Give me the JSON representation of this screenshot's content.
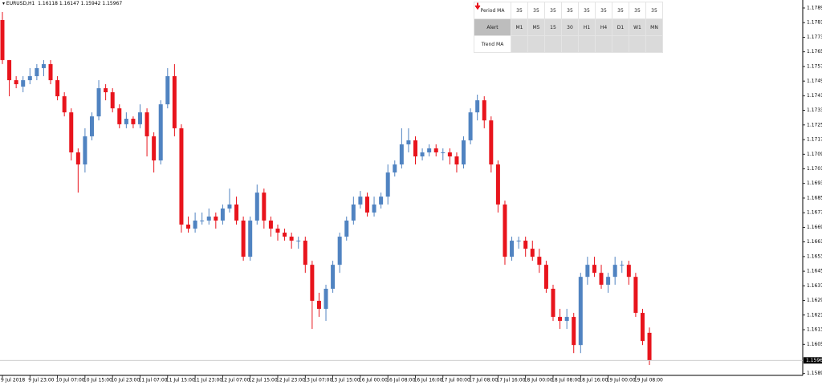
{
  "chart_data": {
    "type": "candlestick",
    "title": "EURUSD,H1",
    "categories": [
      "9 Jul 2018",
      null,
      null,
      null,
      "9 Jul 23:00",
      null,
      null,
      null,
      "10 Jul 07:00",
      null,
      null,
      null,
      "10 Jul 15:00",
      null,
      null,
      null,
      "10 Jul 23:00",
      null,
      null,
      null,
      "11 Jul 07:00",
      null,
      null,
      null,
      "11 Jul 15:00",
      null,
      null,
      null,
      "11 Jul 23:00",
      null,
      null,
      null,
      "12 Jul 07:00",
      null,
      null,
      null,
      "12 Jul 15:00",
      null,
      null,
      null,
      "12 Jul 23:00",
      null,
      null,
      null,
      "13 Jul 07:00",
      null,
      null,
      null,
      "13 Jul 15:00",
      null,
      null,
      null,
      "16 Jul 00:00",
      null,
      null,
      null,
      "16 Jul 08:00",
      null,
      null,
      null,
      "16 Jul 16:00",
      null,
      null,
      null,
      "17 Jul 00:00",
      null,
      null,
      null,
      "17 Jul 08:00",
      null,
      null,
      null,
      "17 Jul 16:00",
      null,
      null,
      null,
      "18 Jul 00:00",
      null,
      null,
      null,
      "18 Jul 08:00",
      null,
      null,
      null,
      "18 Jul 16:00",
      null,
      null,
      null,
      "19 Jul 00:00",
      null,
      null,
      null,
      "19 Jul 08:00",
      null,
      null
    ],
    "open": [
      1.17829,
      1.1761,
      1.175,
      1.17465,
      1.175,
      1.17522,
      1.17566,
      1.17588,
      1.175,
      1.17412,
      1.17324,
      1.17105,
      1.17039,
      1.17193,
      1.17302,
      1.17456,
      1.17434,
      1.17346,
      1.17259,
      1.17289,
      1.17259,
      1.17324,
      1.17193,
      1.17061,
      1.17368,
      1.17522,
      1.17237,
      1.1671,
      1.16688,
      1.16732,
      1.16732,
      1.16754,
      1.16732,
      1.16798,
      1.1682,
      1.16732,
      1.16534,
      1.16732,
      1.16885,
      1.16732,
      1.16688,
      1.16666,
      1.16644,
      1.16622,
      1.16622,
      1.1649,
      1.16293,
      1.16249,
      1.16359,
      1.1649,
      1.16644,
      1.16732,
      1.1682,
      1.16863,
      1.16776,
      1.1682,
      1.16863,
      1.16995,
      1.17039,
      1.17149,
      1.17171,
      1.17083,
      1.17105,
      1.17127,
      1.17105,
      1.17105,
      1.17083,
      1.17039,
      1.17171,
      1.17324,
      1.1739,
      1.1728,
      1.17039,
      1.1682,
      1.16534,
      1.16622,
      1.16622,
      1.16578,
      1.16534,
      1.1649,
      1.16359,
      1.16205,
      1.16183,
      1.16205,
      1.16051,
      1.16424,
      1.1649,
      1.16446,
      1.16381,
      1.16424,
      1.1649,
      1.1649,
      1.16424,
      1.16227,
      1.16118
    ],
    "high": [
      1.17873,
      1.1761,
      1.17522,
      1.17522,
      1.17566,
      1.17588,
      1.1761,
      1.1761,
      1.17522,
      1.17434,
      1.17346,
      1.17127,
      1.17237,
      1.17324,
      1.175,
      1.17478,
      1.17456,
      1.17368,
      1.17324,
      1.17302,
      1.17368,
      1.17346,
      1.17215,
      1.1739,
      1.17566,
      1.17588,
      1.17259,
      1.16754,
      1.16776,
      1.16776,
      1.16798,
      1.16776,
      1.1682,
      1.16907,
      1.16863,
      1.16754,
      1.16754,
      1.16929,
      1.16907,
      1.16754,
      1.1671,
      1.16688,
      1.16666,
      1.16644,
      1.16644,
      1.16512,
      1.16337,
      1.16381,
      1.16512,
      1.16666,
      1.16754,
      1.16863,
      1.16894,
      1.16885,
      1.16863,
      1.16885,
      1.17039,
      1.17061,
      1.17237,
      1.17237,
      1.17193,
      1.17127,
      1.17149,
      1.17149,
      1.17127,
      1.17127,
      1.17105,
      1.17193,
      1.17346,
      1.17421,
      1.17412,
      1.17302,
      1.17061,
      1.16841,
      1.16644,
      1.16644,
      1.16644,
      1.16622,
      1.16578,
      1.16512,
      1.16381,
      1.16249,
      1.16249,
      1.16227,
      1.16446,
      1.16534,
      1.16534,
      1.1649,
      1.16446,
      1.16534,
      1.16512,
      1.16512,
      1.16446,
      1.16249,
      1.16147
    ],
    "low": [
      1.17588,
      1.17412,
      1.17456,
      1.17434,
      1.17478,
      1.175,
      1.17522,
      1.17478,
      1.1739,
      1.17302,
      1.17061,
      1.16885,
      1.16995,
      1.17171,
      1.1728,
      1.1739,
      1.17324,
      1.17237,
      1.17237,
      1.17237,
      1.17237,
      1.17083,
      1.16995,
      1.17039,
      1.17346,
      1.17193,
      1.16666,
      1.16666,
      1.16666,
      1.1671,
      1.1671,
      1.16688,
      1.1671,
      1.16776,
      1.1671,
      1.16512,
      1.16512,
      1.1671,
      1.16688,
      1.16644,
      1.16622,
      1.16622,
      1.16578,
      1.16578,
      1.16446,
      1.16139,
      1.16205,
      1.16183,
      1.16337,
      1.16446,
      1.16622,
      1.1671,
      1.16798,
      1.16754,
      1.16754,
      1.16798,
      1.1682,
      1.16973,
      1.17017,
      1.17105,
      1.17039,
      1.17061,
      1.17083,
      1.17083,
      1.17061,
      1.17039,
      1.16995,
      1.17017,
      1.17149,
      1.1728,
      1.17237,
      1.16995,
      1.16776,
      1.1649,
      1.16512,
      1.16578,
      1.16534,
      1.16512,
      1.16446,
      1.16337,
      1.16183,
      1.16139,
      1.16139,
      1.16007,
      1.16007,
      1.16381,
      1.16424,
      1.16359,
      1.16337,
      1.16381,
      1.16446,
      1.16381,
      1.16205,
      1.16051,
      1.15942
    ],
    "close": [
      1.1761,
      1.175,
      1.17478,
      1.175,
      1.17522,
      1.17566,
      1.17588,
      1.175,
      1.17412,
      1.17324,
      1.17105,
      1.17039,
      1.17193,
      1.17302,
      1.17456,
      1.17434,
      1.17346,
      1.17259,
      1.17289,
      1.17259,
      1.17324,
      1.17193,
      1.17061,
      1.17368,
      1.17522,
      1.17237,
      1.1671,
      1.16688,
      1.16732,
      1.16732,
      1.16754,
      1.16732,
      1.16798,
      1.1682,
      1.16732,
      1.16534,
      1.16732,
      1.16885,
      1.16732,
      1.16688,
      1.16666,
      1.16644,
      1.16622,
      1.16622,
      1.1649,
      1.16293,
      1.16249,
      1.16359,
      1.1649,
      1.16644,
      1.16732,
      1.1682,
      1.16863,
      1.16776,
      1.1682,
      1.16863,
      1.16995,
      1.17039,
      1.17149,
      1.17171,
      1.17083,
      1.17105,
      1.17127,
      1.17105,
      1.17105,
      1.17083,
      1.17039,
      1.17171,
      1.17324,
      1.1739,
      1.1728,
      1.17039,
      1.1682,
      1.16534,
      1.16622,
      1.16622,
      1.16578,
      1.16534,
      1.1649,
      1.16359,
      1.16205,
      1.16183,
      1.16205,
      1.16051,
      1.16424,
      1.1649,
      1.16446,
      1.16381,
      1.16424,
      1.1649,
      1.1649,
      1.16424,
      1.16227,
      1.16073,
      1.15967
    ],
    "up_color": "#5083c1",
    "down_color": "#e8141c",
    "ylim": [
      1.15885,
      1.1793
    ],
    "yticks": [
      1.15895,
      1.16055,
      1.16135,
      1.16215,
      1.16295,
      1.16375,
      1.16455,
      1.16535,
      1.16615,
      1.16695,
      1.16775,
      1.16855,
      1.16935,
      1.17015,
      1.17095,
      1.17175,
      1.17255,
      1.17335,
      1.17415,
      1.17495,
      1.17575,
      1.17655,
      1.17735,
      1.17815,
      1.17895
    ]
  },
  "ma_panel": {
    "period_label": "Period MA",
    "periods": [
      35,
      35,
      35,
      35,
      35,
      35,
      35,
      35,
      35
    ],
    "alert_label": "Alert",
    "timeframes": [
      "M1",
      "M5",
      "15",
      "30",
      "H1",
      "H4",
      "D1",
      "W1",
      "MN"
    ],
    "trend_label": "Trend MA"
  }
}
